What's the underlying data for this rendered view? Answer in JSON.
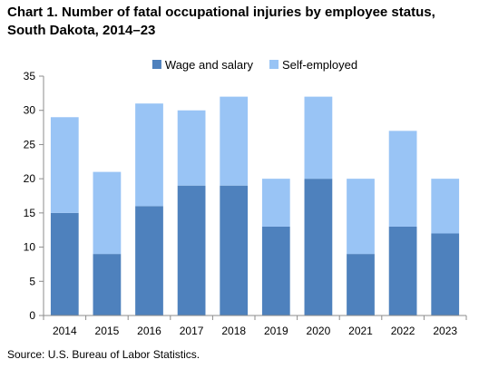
{
  "chart_data": {
    "type": "bar",
    "stacked": true,
    "title": "Chart 1. Number of fatal occupational injuries by employee status, South Dakota, 2014–23",
    "source": "Source: U.S. Bureau of Labor Statistics.",
    "categories": [
      "2014",
      "2015",
      "2016",
      "2017",
      "2018",
      "2019",
      "2020",
      "2021",
      "2022",
      "2023"
    ],
    "series": [
      {
        "name": "Wage and salary",
        "color": "#4e81bd",
        "values": [
          15,
          9,
          16,
          19,
          19,
          13,
          20,
          9,
          13,
          12
        ]
      },
      {
        "name": "Self-employed",
        "color": "#99c4f5",
        "values": [
          14,
          12,
          15,
          11,
          13,
          7,
          12,
          11,
          14,
          8
        ]
      }
    ],
    "ylim": [
      0,
      35
    ],
    "yticks": [
      "0",
      "5",
      "10",
      "15",
      "20",
      "25",
      "30",
      "35"
    ],
    "grid": false,
    "legend": "top-center"
  }
}
